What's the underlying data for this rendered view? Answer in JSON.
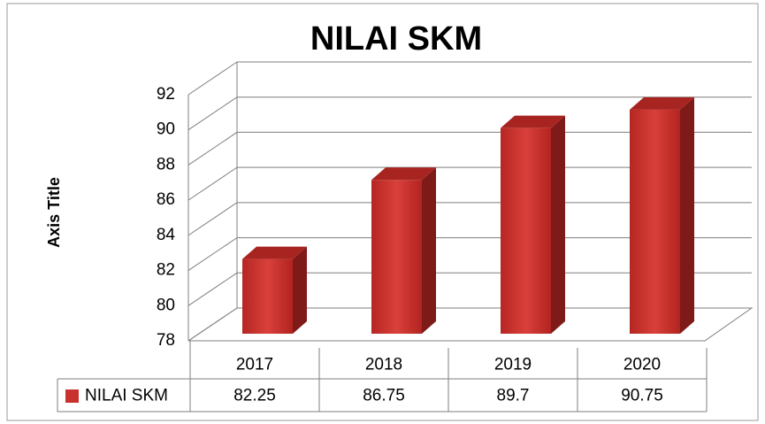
{
  "chart_data": {
    "type": "bar",
    "title": "NILAI SKM",
    "y_axis_label": "Axis Title",
    "categories": [
      "2017",
      "2018",
      "2019",
      "2020"
    ],
    "series": [
      {
        "name": "NILAI SKM",
        "color": "#c8322e",
        "values": [
          82.25,
          86.75,
          89.7,
          90.75
        ]
      }
    ],
    "ylim": [
      78,
      92
    ],
    "yticks": [
      78,
      80,
      82,
      84,
      86,
      88,
      90,
      92
    ],
    "grid": true
  }
}
